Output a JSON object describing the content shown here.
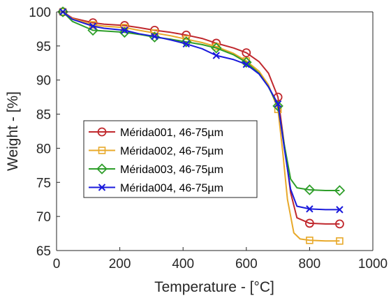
{
  "chart_data": {
    "type": "line",
    "title": "",
    "xlabel": "Temperature - [°C]",
    "ylabel": "Weight - [%]",
    "xlim": [
      0,
      1000
    ],
    "ylim": [
      65,
      100
    ],
    "xticks": [
      0,
      200,
      400,
      600,
      800,
      1000
    ],
    "yticks": [
      65,
      70,
      75,
      80,
      85,
      90,
      95,
      100
    ],
    "grid": false,
    "legend_position": "center-left",
    "series": [
      {
        "name": "Mérida001, 46-75µm",
        "color": "#c0282d",
        "marker": "circle",
        "x": [
          20,
          50,
          115,
          150,
          215,
          260,
          310,
          360,
          410,
          460,
          505,
          560,
          600,
          640,
          670,
          700,
          720,
          740,
          760,
          800,
          850,
          895
        ],
        "y": [
          100,
          99.1,
          98.4,
          98.2,
          98.0,
          97.7,
          97.3,
          97.0,
          96.6,
          96.1,
          95.4,
          94.7,
          94.0,
          92.7,
          91.0,
          87.5,
          80.5,
          73.5,
          69.8,
          69.0,
          68.9,
          68.9
        ],
        "markers_x": [
          20,
          115,
          215,
          310,
          410,
          505,
          600,
          700,
          800,
          895
        ]
      },
      {
        "name": "Mérida002, 46-75µm",
        "color": "#e8a92a",
        "marker": "square",
        "x": [
          20,
          50,
          115,
          150,
          215,
          260,
          310,
          360,
          410,
          460,
          505,
          560,
          600,
          640,
          670,
          700,
          715,
          730,
          750,
          770,
          800,
          850,
          895
        ],
        "y": [
          100,
          99.0,
          98.1,
          97.9,
          97.7,
          97.3,
          96.9,
          96.5,
          96.0,
          95.5,
          94.9,
          93.9,
          92.8,
          91.3,
          89.3,
          85.7,
          79.5,
          72.5,
          67.6,
          66.7,
          66.5,
          66.4,
          66.4
        ],
        "markers_x": [
          20,
          115,
          215,
          310,
          410,
          505,
          600,
          700,
          800,
          895
        ]
      },
      {
        "name": "Mérida003, 46-75µm",
        "color": "#2e9e2a",
        "marker": "diamond",
        "x": [
          20,
          50,
          115,
          150,
          215,
          260,
          310,
          360,
          410,
          460,
          505,
          560,
          600,
          640,
          670,
          700,
          720,
          740,
          760,
          800,
          850,
          895
        ],
        "y": [
          100,
          98.6,
          97.3,
          97.2,
          97.0,
          96.7,
          96.3,
          96.0,
          95.6,
          95.2,
          94.7,
          93.7,
          92.6,
          91.0,
          89.0,
          86.2,
          80.5,
          75.5,
          74.2,
          73.9,
          73.8,
          73.8
        ],
        "markers_x": [
          20,
          115,
          215,
          310,
          410,
          505,
          600,
          700,
          800,
          895
        ]
      },
      {
        "name": "Mérida004, 46-75µm",
        "color": "#1a1adc",
        "marker": "x",
        "x": [
          20,
          50,
          115,
          150,
          215,
          260,
          310,
          360,
          410,
          460,
          505,
          560,
          600,
          640,
          670,
          700,
          720,
          740,
          760,
          800,
          850,
          895
        ],
        "y": [
          100,
          98.9,
          97.9,
          97.6,
          97.3,
          96.8,
          96.4,
          95.9,
          95.3,
          94.6,
          93.6,
          93.0,
          92.3,
          90.9,
          89.0,
          86.5,
          80.0,
          74.0,
          71.5,
          71.1,
          71.0,
          71.0
        ],
        "markers_x": [
          20,
          115,
          215,
          310,
          410,
          505,
          600,
          700,
          800,
          895
        ]
      }
    ]
  }
}
